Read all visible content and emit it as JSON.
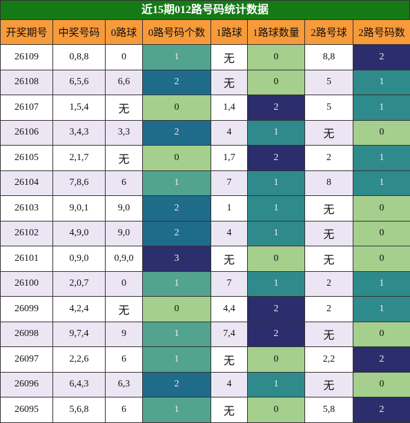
{
  "title": "近15期012路号码统计数据",
  "table": {
    "header": [
      "开奖期号",
      "中奖号码",
      "0路球",
      "0路号码个数",
      "1路球",
      "1路球数量",
      "2路号球",
      "2路号码数"
    ],
    "rows": [
      [
        "26109",
        "0,8,8",
        "0",
        1,
        "无",
        0,
        "8,8",
        2
      ],
      [
        "26108",
        "6,5,6",
        "6,6",
        2,
        "无",
        0,
        "5",
        1
      ],
      [
        "26107",
        "1,5,4",
        "无",
        0,
        "1,4",
        2,
        "5",
        1
      ],
      [
        "26106",
        "3,4,3",
        "3,3",
        2,
        "4",
        1,
        "无",
        0
      ],
      [
        "26105",
        "2,1,7",
        "无",
        0,
        "1,7",
        2,
        "2",
        1
      ],
      [
        "26104",
        "7,8,6",
        "6",
        1,
        "7",
        1,
        "8",
        1
      ],
      [
        "26103",
        "9,0,1",
        "9,0",
        2,
        "1",
        1,
        "无",
        0
      ],
      [
        "26102",
        "4,9,0",
        "9,0",
        2,
        "4",
        1,
        "无",
        0
      ],
      [
        "26101",
        "0,9,0",
        "0,9,0",
        3,
        "无",
        0,
        "无",
        0
      ],
      [
        "26100",
        "2,0,7",
        "0",
        1,
        "7",
        1,
        "2",
        1
      ],
      [
        "26099",
        "4,2,4",
        "无",
        0,
        "4,4",
        2,
        "2",
        1
      ],
      [
        "26098",
        "9,7,4",
        "9",
        1,
        "7,4",
        2,
        "无",
        0
      ],
      [
        "26097",
        "2,2,6",
        "6",
        1,
        "无",
        0,
        "2,2",
        2
      ],
      [
        "26096",
        "6,4,3",
        "6,3",
        2,
        "4",
        1,
        "无",
        0
      ],
      [
        "26095",
        "5,6,8",
        "6",
        1,
        "无",
        0,
        "5,8",
        2
      ]
    ]
  }
}
